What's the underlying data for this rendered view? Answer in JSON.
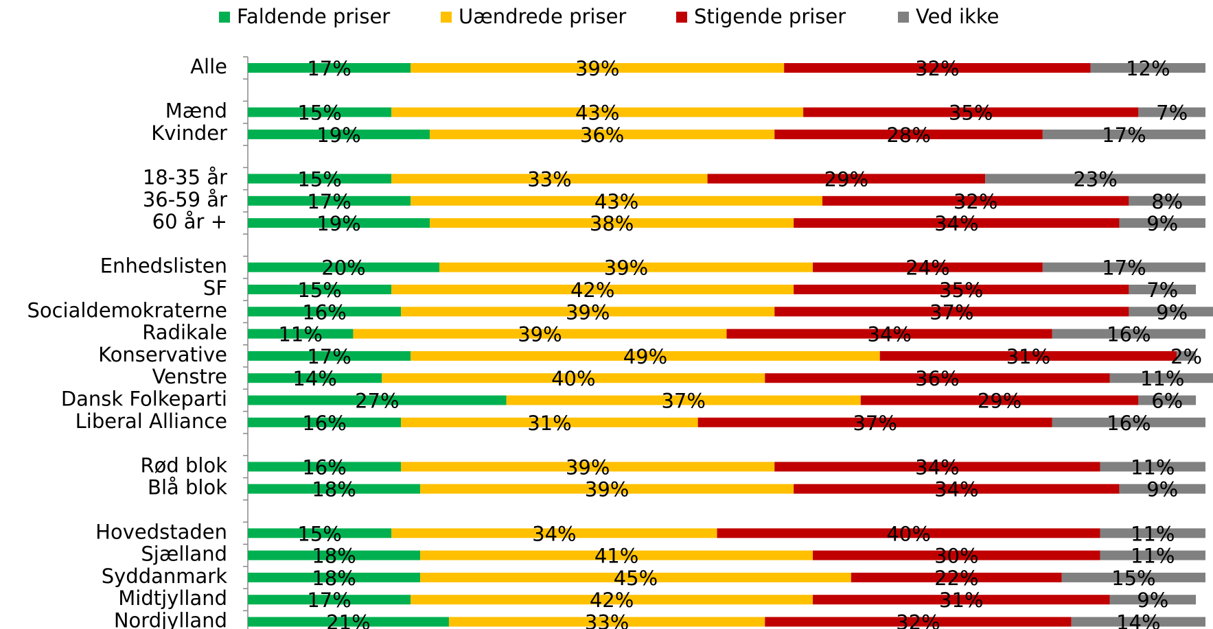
{
  "chart_data": {
    "type": "stacked-barh",
    "categories": [
      "Alle",
      null,
      "Mænd",
      "Kvinder",
      null,
      "18-35 år",
      "36-59 år",
      "60 år +",
      null,
      "Enhedslisten",
      "SF",
      "Socialdemokraterne",
      "Radikale",
      "Konservative",
      "Venstre",
      "Dansk Folkeparti",
      "Liberal Alliance",
      null,
      "Rød blok",
      "Blå blok",
      null,
      "Hovedstaden",
      "Sjælland",
      "Syddanmark",
      "Midtjylland",
      "Nordjylland"
    ],
    "xlim": [
      0,
      100
    ],
    "legend": "top",
    "series": [
      {
        "name": "Faldende priser",
        "color": "#00b050",
        "values": [
          17,
          null,
          15,
          19,
          null,
          15,
          17,
          19,
          null,
          20,
          15,
          16,
          11,
          17,
          14,
          27,
          16,
          null,
          16,
          18,
          null,
          15,
          18,
          18,
          17,
          21
        ],
        "value_labels": [
          "17%",
          null,
          "15%",
          "19%",
          null,
          "15%",
          "17%",
          "19%",
          null,
          "20%",
          "15%",
          "16%",
          "11%",
          "17%",
          "14%",
          "27%",
          "16%",
          null,
          "16%",
          "18%",
          null,
          "15%",
          "18%",
          "18%",
          "17%",
          "21%"
        ]
      },
      {
        "name": "Uændrede priser",
        "color": "#ffc000",
        "values": [
          39,
          null,
          43,
          36,
          null,
          33,
          43,
          38,
          null,
          39,
          42,
          39,
          39,
          49,
          40,
          37,
          31,
          null,
          39,
          39,
          null,
          34,
          41,
          45,
          42,
          33
        ],
        "value_labels": [
          "39%",
          null,
          "43%",
          "36%",
          null,
          "33%",
          "43%",
          "38%",
          null,
          "39%",
          "42%",
          "39%",
          "39%",
          "49%",
          "40%",
          "37%",
          "31%",
          null,
          "39%",
          "39%",
          null,
          "34%",
          "41%",
          "45%",
          "42%",
          "33%"
        ]
      },
      {
        "name": "Stigende priser",
        "color": "#c00000",
        "values": [
          32,
          null,
          35,
          28,
          null,
          29,
          32,
          34,
          null,
          24,
          35,
          37,
          34,
          31,
          36,
          29,
          37,
          null,
          34,
          34,
          null,
          40,
          30,
          22,
          31,
          32
        ],
        "value_labels": [
          "32%",
          null,
          "35%",
          "28%",
          null,
          "29%",
          "32%",
          "34%",
          null,
          "24%",
          "35%",
          "37%",
          "34%",
          "31%",
          "36%",
          "29%",
          "37%",
          null,
          "34%",
          "34%",
          null,
          "40%",
          "30%",
          "22%",
          "31%",
          "32%"
        ]
      },
      {
        "name": "Ved ikke",
        "color": "#808080",
        "values": [
          12,
          null,
          7,
          17,
          null,
          23,
          8,
          9,
          null,
          17,
          7,
          9,
          16,
          2,
          11,
          6,
          16,
          null,
          11,
          9,
          null,
          11,
          11,
          15,
          9,
          14
        ],
        "value_labels": [
          "12%",
          null,
          "7%",
          "17%",
          null,
          "23%",
          "8%",
          "9%",
          null,
          "17%",
          "7%",
          "9%",
          "16%",
          "2%",
          "11%",
          "6%",
          "16%",
          null,
          "11%",
          "9%",
          null,
          "11%",
          "11%",
          "15%",
          "9%",
          "14%"
        ]
      }
    ]
  }
}
